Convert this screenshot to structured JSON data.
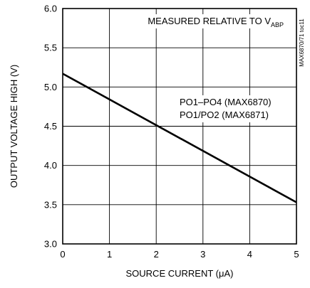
{
  "chart_data": {
    "type": "line",
    "title": "",
    "xlabel": "SOURCE CURRENT (μA)",
    "ylabel": "OUTPUT VOLTAGE HIGH (V)",
    "xlim": [
      0,
      5
    ],
    "ylim": [
      3.0,
      6.0
    ],
    "x_ticks": [
      "0",
      "1",
      "2",
      "3",
      "4",
      "5"
    ],
    "y_ticks": [
      "3.0",
      "3.5",
      "4.0",
      "4.5",
      "5.0",
      "5.5",
      "6.0"
    ],
    "grid": true,
    "series": [
      {
        "name": "",
        "x": [
          0,
          5
        ],
        "y": [
          5.17,
          3.53
        ]
      }
    ],
    "annotations": {
      "header_main": "MEASURED RELATIVE TO V",
      "header_sub": "ABP",
      "series_label_1": "PO1–PO4 (MAX6870)",
      "series_label_2": "PO1/PO2 (MAX6871)",
      "figure_id": "MAX6870/71 toc11"
    }
  }
}
